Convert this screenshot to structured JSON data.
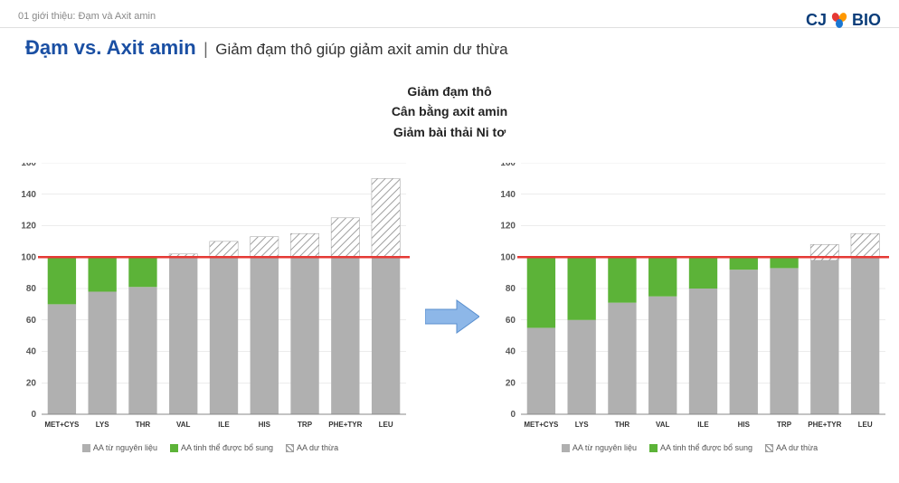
{
  "header": {
    "breadcrumb": "01 giới thiệu: Đạm và Axit amin"
  },
  "logo": {
    "cj": "CJ",
    "bio": "BIO",
    "red": "#e53935",
    "orange": "#ff9800",
    "blue": "#1976d2",
    "textcolor": "#0a3d7a"
  },
  "title": {
    "main": "Đạm vs. Axit amin",
    "sub": "Giảm đạm thô giúp giảm axit amin dư thừa",
    "main_color": "#1a4fa3"
  },
  "center": {
    "line1": "Giảm đạm thô",
    "line2": "Cân bằng  axit amin",
    "line3": "Giảm bài thải Ni tơ"
  },
  "legend": {
    "s1": "AA từ nguyên liệu",
    "s2": "AA tinh thể được bổ sung",
    "s3": "AA dư thừa"
  },
  "colors": {
    "series1_fill": "#b0b0b0",
    "series2_fill": "#5cb338",
    "series3_stroke": "#9e9e9e",
    "series3_bg": "#ffffff",
    "reference_line": "#e53935",
    "gridline": "#d9d9d9",
    "axis_text": "#555555",
    "arrow_fill": "#8db7e8",
    "arrow_stroke": "#5a8fce"
  },
  "chart_shared": {
    "ylim": [
      0,
      160
    ],
    "ytick_step": 20,
    "reference_y": 100,
    "categories": [
      "MET+CYS",
      "LYS",
      "THR",
      "VAL",
      "ILE",
      "HIS",
      "TRP",
      "PHE+TYR",
      "LEU"
    ],
    "bar_width": 0.7,
    "axis_fontsize": 10,
    "cat_fontsize": 8
  },
  "chart_left": {
    "s1": [
      70,
      78,
      81,
      100,
      100,
      100,
      100,
      100,
      100
    ],
    "s2": [
      30,
      22,
      19,
      0,
      0,
      0,
      0,
      0,
      0
    ],
    "s3": [
      0,
      0,
      0,
      2,
      10,
      13,
      15,
      25,
      50
    ]
  },
  "chart_right": {
    "s1": [
      55,
      60,
      71,
      75,
      80,
      92,
      93,
      98,
      100
    ],
    "s2": [
      45,
      40,
      29,
      25,
      20,
      8,
      7,
      0,
      0
    ],
    "s3": [
      0,
      0,
      0,
      0,
      0,
      0,
      0,
      10,
      15
    ]
  }
}
